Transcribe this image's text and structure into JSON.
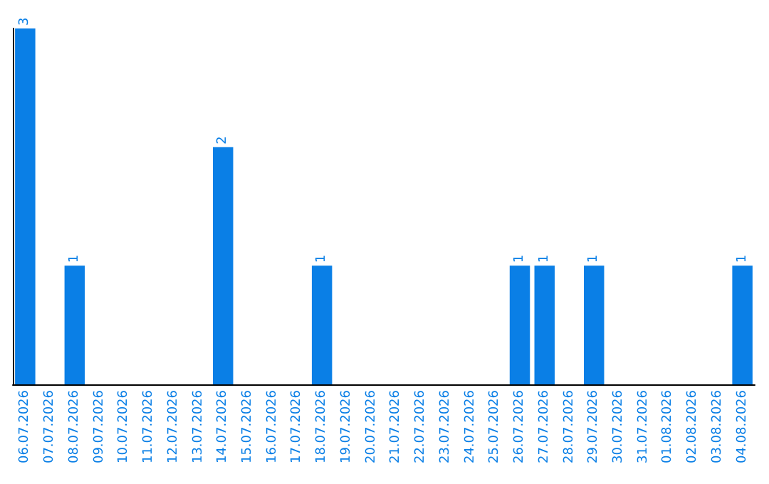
{
  "chart_data": {
    "type": "bar",
    "categories": [
      "06.07.2026",
      "07.07.2026",
      "08.07.2026",
      "09.07.2026",
      "10.07.2026",
      "11.07.2026",
      "12.07.2026",
      "13.07.2026",
      "14.07.2026",
      "15.07.2026",
      "16.07.2026",
      "17.07.2026",
      "18.07.2026",
      "19.07.2026",
      "20.07.2026",
      "21.07.2026",
      "22.07.2026",
      "23.07.2026",
      "24.07.2026",
      "25.07.2026",
      "26.07.2026",
      "27.07.2026",
      "28.07.2026",
      "29.07.2026",
      "30.07.2026",
      "31.07.2026",
      "01.08.2026",
      "02.08.2026",
      "03.08.2026",
      "04.08.2026"
    ],
    "values": [
      3,
      0,
      1,
      0,
      0,
      0,
      0,
      0,
      2,
      0,
      0,
      0,
      1,
      0,
      0,
      0,
      0,
      0,
      0,
      0,
      1,
      1,
      0,
      1,
      0,
      0,
      0,
      0,
      0,
      1
    ],
    "value_labels": [
      "3",
      null,
      "1",
      null,
      null,
      null,
      null,
      null,
      "2",
      null,
      null,
      null,
      "1",
      null,
      null,
      null,
      null,
      null,
      null,
      null,
      "1",
      "1",
      null,
      "1",
      null,
      null,
      null,
      null,
      null,
      "1"
    ],
    "color": "#0a7fe6",
    "tick_labels": "x"
  }
}
